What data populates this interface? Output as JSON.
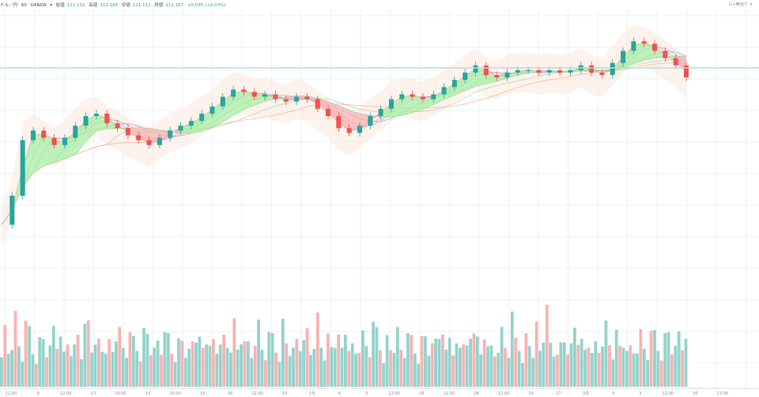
{
  "header": {
    "symbol": "ドル／円",
    "interval": "60",
    "source": "OANDA",
    "dropdown_icon": "chevron-down-icon",
    "open_label": "始値",
    "open_value": "111.132",
    "high_label": "高値",
    "high_value": "111.185",
    "low_label": "安値",
    "low_value": "111.111",
    "close_label": "終値",
    "close_value": "111.167",
    "change": "+0.035 (+0.03%)"
  },
  "top_right": {
    "label": "ロ+無効で",
    "close_icon": "close-icon"
  },
  "colors": {
    "up": "#26a69a",
    "down": "#ef5350",
    "up_fill": "#a5f0a5",
    "down_fill": "#f5b3b3",
    "grid": "#eef1f5",
    "price_line": "#b2dfdb"
  },
  "chart_data": {
    "type": "candlestick",
    "xlabel": "",
    "ylabel": "",
    "grid": true,
    "legend": "none",
    "x_tick_labels": [
      "12:00",
      "6",
      "12:00",
      "13",
      "10:00",
      "14",
      "10:00",
      "15",
      "18",
      "12:00",
      "19",
      "2月",
      "4",
      "5",
      "12:00",
      "26",
      "12:00",
      "28",
      "12:00",
      "29",
      "27",
      "3月",
      "4",
      "5",
      "12:00",
      "20",
      "12:00"
    ],
    "close_series": [
      105.0,
      106.2,
      108.5,
      108.9,
      108.6,
      108.3,
      108.6,
      109.1,
      109.5,
      109.6,
      109.2,
      109.0,
      108.7,
      108.5,
      108.3,
      108.6,
      108.9,
      109.1,
      109.3,
      109.6,
      109.9,
      110.3,
      110.6,
      110.5,
      110.3,
      110.4,
      110.2,
      110.1,
      110.3,
      110.2,
      109.8,
      109.5,
      109.0,
      108.8,
      109.1,
      109.5,
      109.8,
      110.2,
      110.4,
      110.3,
      110.2,
      110.4,
      110.7,
      111.0,
      111.3,
      111.6,
      111.2,
      111.1,
      111.3,
      111.4,
      111.4,
      111.3,
      111.4,
      111.3,
      111.4,
      111.6,
      111.3,
      111.2,
      111.7,
      112.2,
      112.6,
      112.5,
      112.2,
      111.9,
      111.6,
      111.1
    ],
    "volume_series": [
      45,
      60,
      38,
      52,
      70,
      44,
      33,
      58,
      62,
      40,
      35,
      48,
      55,
      42,
      38,
      66,
      50,
      44,
      36,
      52,
      47,
      41,
      60,
      39,
      58,
      72,
      45,
      37,
      49,
      43,
      51,
      46,
      40,
      64,
      55,
      42,
      38,
      48,
      52,
      44,
      39,
      57,
      61,
      45,
      36,
      50,
      42,
      48,
      55,
      40,
      38,
      47,
      53,
      41,
      35,
      49,
      58,
      44,
      40,
      52,
      63,
      46,
      38,
      60,
      48,
      42
    ]
  }
}
